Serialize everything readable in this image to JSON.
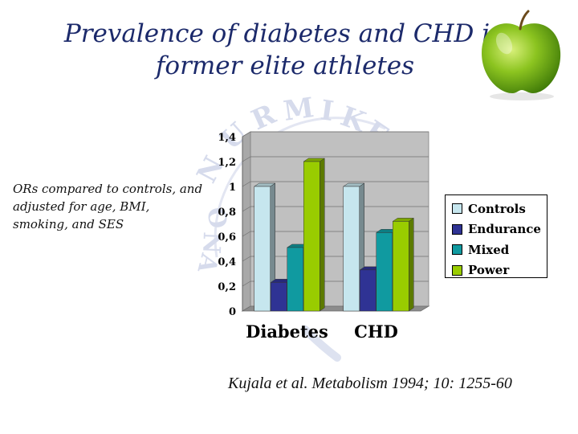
{
  "slide": {
    "title_line1": "Prevalence of diabetes and CHD in",
    "title_line2": "former elite athletes",
    "note": "ORs compared to controls, and adjusted for age, BMI, smoking, and SES",
    "citation": "Kujala et al. Metabolism 1994; 10: 1255-60",
    "watermark": "NURMI KE ... ONA"
  },
  "colors": {
    "title": "#1c2a6b",
    "wall": "#c0c0c0",
    "controls": "#c6e6ee",
    "endurance": "#2f3394",
    "mixed": "#109aa0",
    "power": "#99cc00"
  },
  "chart_data": {
    "type": "bar",
    "categories": [
      "Diabetes",
      "CHD"
    ],
    "series": [
      {
        "name": "Controls",
        "values": [
          1.0,
          1.0
        ],
        "color": "#c6e6ee"
      },
      {
        "name": "Endurance",
        "values": [
          0.23,
          0.33
        ],
        "color": "#2f3394"
      },
      {
        "name": "Mixed",
        "values": [
          0.51,
          0.63
        ],
        "color": "#109aa0"
      },
      {
        "name": "Power",
        "values": [
          1.2,
          0.72
        ],
        "color": "#99cc00"
      }
    ],
    "ylim": [
      0,
      1.4
    ],
    "yticks": [
      0,
      0.2,
      0.4,
      0.6,
      0.8,
      1.0,
      1.2,
      1.4
    ],
    "ytick_labels": [
      "0",
      "0,2",
      "0,4",
      "0,6",
      "0,8",
      "1",
      "1,2",
      "1,4"
    ],
    "grid": true,
    "legend": "right",
    "style": "3d-columns"
  }
}
